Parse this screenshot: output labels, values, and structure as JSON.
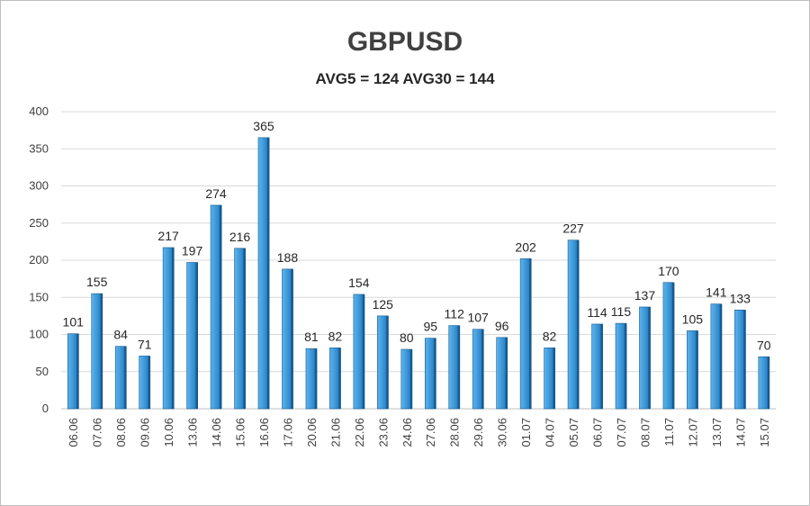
{
  "chart_data": {
    "type": "bar",
    "title": "GBPUSD",
    "subtitle": "AVG5 = 124 AVG30 = 144",
    "categories": [
      "06.06",
      "07.06",
      "08.06",
      "09.06",
      "10.06",
      "13.06",
      "14.06",
      "15.06",
      "16.06",
      "17.06",
      "20.06",
      "21.06",
      "22.06",
      "23.06",
      "24.06",
      "27.06",
      "28.06",
      "29.06",
      "30.06",
      "01.07",
      "04.07",
      "05.07",
      "06.07",
      "07.07",
      "08.07",
      "11.07",
      "12.07",
      "13.07",
      "14.07",
      "15.07"
    ],
    "values": [
      101,
      155,
      84,
      71,
      217,
      197,
      274,
      216,
      365,
      188,
      81,
      82,
      154,
      125,
      80,
      95,
      112,
      107,
      96,
      202,
      82,
      227,
      114,
      115,
      137,
      170,
      105,
      141,
      133,
      70
    ],
    "ylim": [
      0,
      400
    ],
    "yticks": [
      0,
      50,
      100,
      150,
      200,
      250,
      300,
      350,
      400
    ],
    "grid": true,
    "legend": "none",
    "colors": {
      "bar_top": "#5db4ec",
      "bar_bottom": "#1f74b8",
      "bar_edge": "#165a8f",
      "grid": "#d9d9d9",
      "axis": "#bfbfbf"
    }
  }
}
